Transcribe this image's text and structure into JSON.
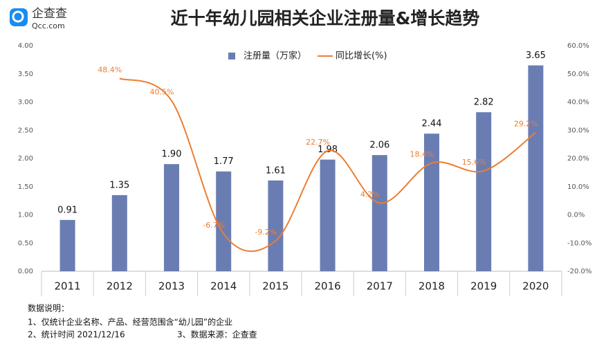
{
  "chart_data": {
    "type": "bar-line",
    "logo_text": "企查查",
    "logo_subtext": "Qcc.com",
    "title": "近十年幼儿园相关企业注册量&增长趋势",
    "categories": [
      "2011",
      "2012",
      "2013",
      "2014",
      "2015",
      "2016",
      "2017",
      "2018",
      "2019",
      "2020"
    ],
    "series": [
      {
        "name": "注册量（万家）",
        "type": "bar",
        "color": "#6a7db3",
        "values": [
          0.91,
          1.35,
          1.9,
          1.77,
          1.61,
          1.98,
          2.06,
          2.44,
          2.82,
          3.65
        ],
        "value_labels": [
          "0.91",
          "1.35",
          "1.90",
          "1.77",
          "1.61",
          "1.98",
          "2.06",
          "2.44",
          "2.82",
          "3.65"
        ]
      },
      {
        "name": "同比增长(%)",
        "type": "line",
        "axis": "y2",
        "color": "#ed7d31",
        "smooth": true,
        "values": [
          null,
          48.4,
          40.5,
          -6.7,
          -9.2,
          22.7,
          4.2,
          18.4,
          15.6,
          29.2
        ],
        "value_labels": [
          null,
          "48.4%",
          "40.5%",
          "-6.7%",
          "-9.2%",
          "22.7%",
          "4.2%",
          "18.4%",
          "15.6%",
          "29.2%"
        ]
      }
    ],
    "ylim": [
      0,
      4
    ],
    "yticks": [
      {
        "value": 0,
        "label": "0.00"
      },
      {
        "value": 0.5,
        "label": "0.50"
      },
      {
        "value": 1,
        "label": "1.00"
      },
      {
        "value": 1.5,
        "label": "1.50"
      },
      {
        "value": 2,
        "label": "2.00"
      },
      {
        "value": 2.5,
        "label": "2.50"
      },
      {
        "value": 3,
        "label": "3.00"
      },
      {
        "value": 3.5,
        "label": "3.50"
      },
      {
        "value": 4,
        "label": "4.00"
      }
    ],
    "y2lim": [
      -20,
      60
    ],
    "y2ticks": [
      {
        "value": -20,
        "label": "-20.0%"
      },
      {
        "value": -10,
        "label": "-10.0%"
      },
      {
        "value": 0,
        "label": "0.0%"
      },
      {
        "value": 10,
        "label": "10.0%"
      },
      {
        "value": 20,
        "label": "20.0%"
      },
      {
        "value": 30,
        "label": "30.0%"
      },
      {
        "value": 40,
        "label": "40.0%"
      },
      {
        "value": 50,
        "label": "50.0%"
      },
      {
        "value": 60,
        "label": "60.0%"
      }
    ],
    "grid": false,
    "legend": "top",
    "notes": [
      "数据说明：",
      "1、仅统计企业名称、产品、经营范围含“幼儿园”的企业",
      "2、统计时间 2021/12/16",
      "3、数据来源：企查查"
    ]
  }
}
